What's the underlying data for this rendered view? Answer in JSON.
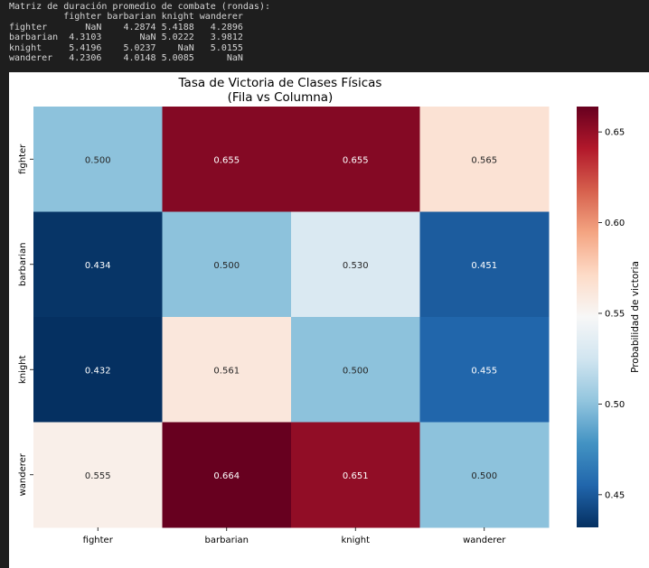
{
  "console": {
    "title": "Matriz de duración promedio de combate (rondas):",
    "header": [
      "fighter",
      "barbarian",
      "knight",
      "wanderer"
    ],
    "rows": [
      {
        "label": "fighter",
        "values": [
          "NaN",
          "4.2874",
          "5.4188",
          "4.2896"
        ]
      },
      {
        "label": "barbarian",
        "values": [
          "4.3103",
          "NaN",
          "5.0222",
          "3.9812"
        ]
      },
      {
        "label": "knight",
        "values": [
          "5.4196",
          "5.0237",
          "NaN",
          "5.0155"
        ]
      },
      {
        "label": "wanderer",
        "values": [
          "4.2306",
          "4.0148",
          "5.0085",
          "NaN"
        ]
      }
    ]
  },
  "chart_data": {
    "type": "heatmap",
    "title": "Tasa de Victoria de Clases Físicas",
    "subtitle": "(Fila vs Columna)",
    "rows": [
      "fighter",
      "barbarian",
      "knight",
      "wanderer"
    ],
    "columns": [
      "fighter",
      "barbarian",
      "knight",
      "wanderer"
    ],
    "values": [
      [
        0.5,
        0.655,
        0.655,
        0.565
      ],
      [
        0.434,
        0.5,
        0.53,
        0.451
      ],
      [
        0.432,
        0.561,
        0.5,
        0.455
      ],
      [
        0.555,
        0.664,
        0.651,
        0.5
      ]
    ],
    "cell_labels": [
      [
        "0.500",
        "0.655",
        "0.655",
        "0.565"
      ],
      [
        "0.434",
        "0.500",
        "0.530",
        "0.451"
      ],
      [
        "0.432",
        "0.561",
        "0.500",
        "0.455"
      ],
      [
        "0.555",
        "0.664",
        "0.651",
        "0.500"
      ]
    ],
    "colormap": "RdBu_r",
    "vmin": 0.432,
    "vmax": 0.664,
    "colorbar": {
      "label": "Probabilidad de victoria",
      "ticks": [
        0.45,
        0.5,
        0.55,
        0.6,
        0.65
      ],
      "tick_labels": [
        "0.45",
        "0.50",
        "0.55",
        "0.60",
        "0.65"
      ]
    }
  }
}
